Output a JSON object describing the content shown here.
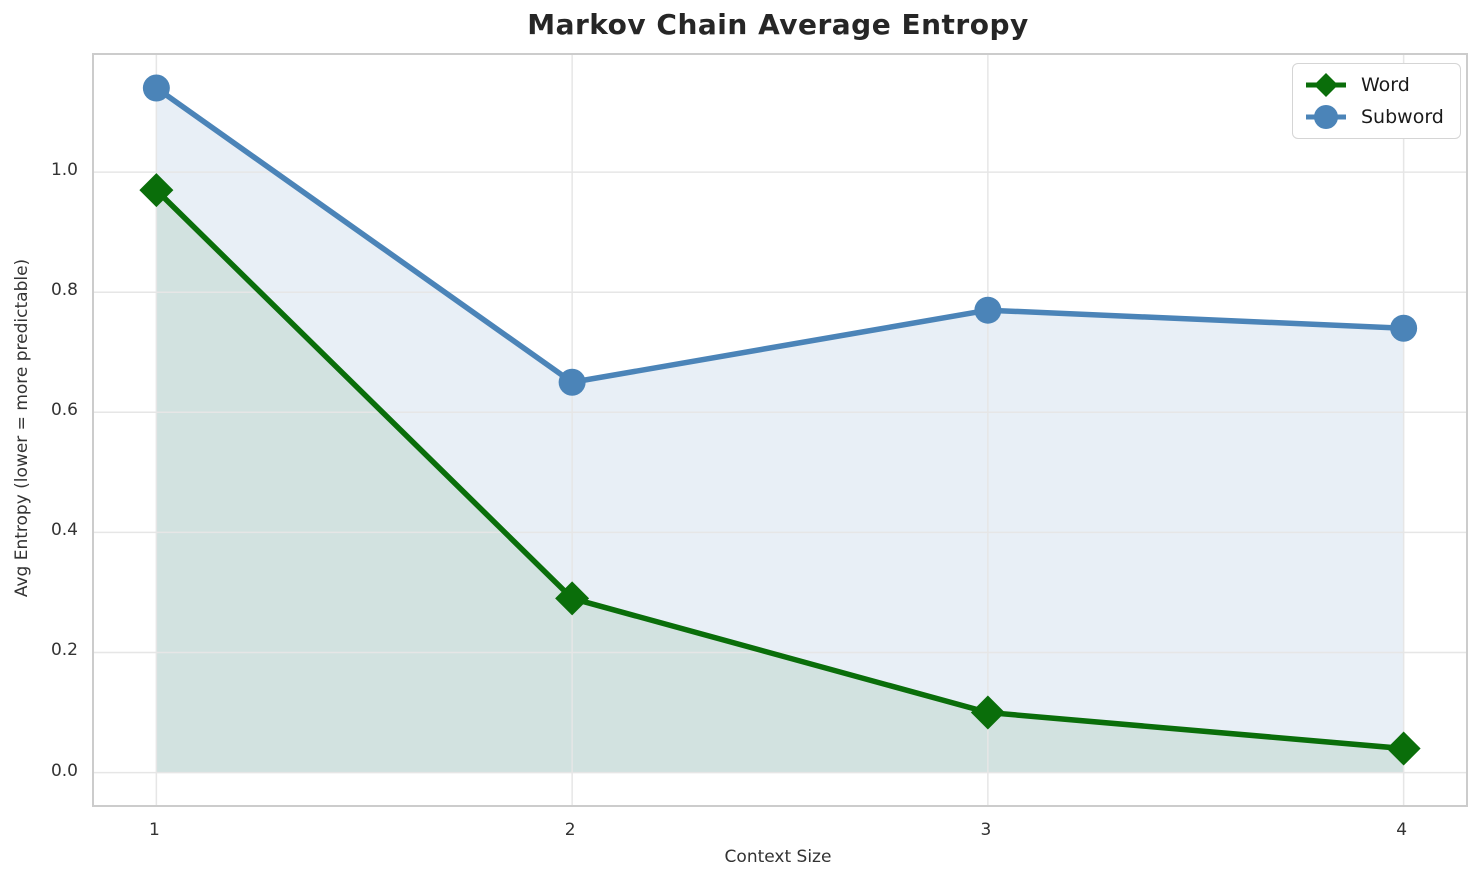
{
  "chart_data": {
    "type": "line",
    "title": "Markov Chain Average Entropy",
    "xlabel": "Context Size",
    "ylabel": "Avg Entropy (lower = more predictable)",
    "x": [
      1,
      2,
      3,
      4
    ],
    "x_tick_labels": [
      "1",
      "2",
      "3",
      "4"
    ],
    "y_ticks": [
      0.0,
      0.2,
      0.4,
      0.6,
      0.8,
      1.0
    ],
    "y_tick_labels": [
      "0.0",
      "0.2",
      "0.4",
      "0.6",
      "0.8",
      "1.0"
    ],
    "xlim": [
      0.85,
      4.15
    ],
    "ylim": [
      -0.054,
      1.195
    ],
    "grid": true,
    "grid_color": "#e6e6e6",
    "spine_color": "#cccccc",
    "legend_position": "upper right",
    "fill_baseline": 0,
    "series": [
      {
        "name": "Word",
        "marker": "diamond",
        "color": "#0a6e0a",
        "fill": "rgba(10, 110, 10, 0.10)",
        "values": [
          0.97,
          0.29,
          0.1,
          0.04
        ]
      },
      {
        "name": "Subword",
        "marker": "circle",
        "color": "#4b84b8",
        "fill": "rgba(75, 132, 184, 0.13)",
        "values": [
          1.14,
          0.65,
          0.77,
          0.74
        ]
      }
    ]
  }
}
